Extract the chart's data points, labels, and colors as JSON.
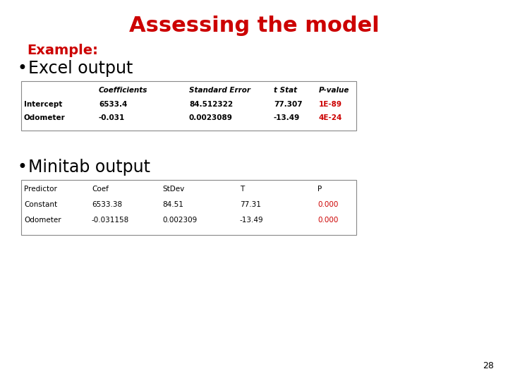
{
  "title": "Assessing the model",
  "title_color": "#CC0000",
  "title_fontsize": 22,
  "bg_color": "#FFFFFF",
  "example_label": "Example:",
  "example_color": "#CC0000",
  "example_fontsize": 14,
  "bullet1": "Excel output",
  "bullet2": "Minitab output",
  "bullet_fontsize": 17,
  "bullet_color": "#000000",
  "excel_headers": [
    "",
    "Coefficients",
    "Standard Error",
    "t Stat",
    "P-value"
  ],
  "excel_rows": [
    [
      "Intercept",
      "6533.4",
      "84.512322",
      "77.307",
      "1E-89"
    ],
    [
      "Odometer",
      "-0.031",
      "0.0023089",
      "-13.49",
      "4E-24"
    ]
  ],
  "excel_pvalue_color": "#CC0000",
  "excel_pvalue_col": 4,
  "minitab_headers": [
    "Predictor",
    "Coef",
    "StDev",
    "T",
    "P"
  ],
  "minitab_rows": [
    [
      "Constant",
      "6533.38",
      "84.51",
      "77.31",
      "0.000"
    ],
    [
      "Odometer",
      "-0.031158",
      "0.002309",
      "-13.49",
      "0.000"
    ]
  ],
  "minitab_pvalue_color": "#CC0000",
  "minitab_pvalue_col": 4,
  "page_number": "28",
  "page_number_color": "#000000"
}
